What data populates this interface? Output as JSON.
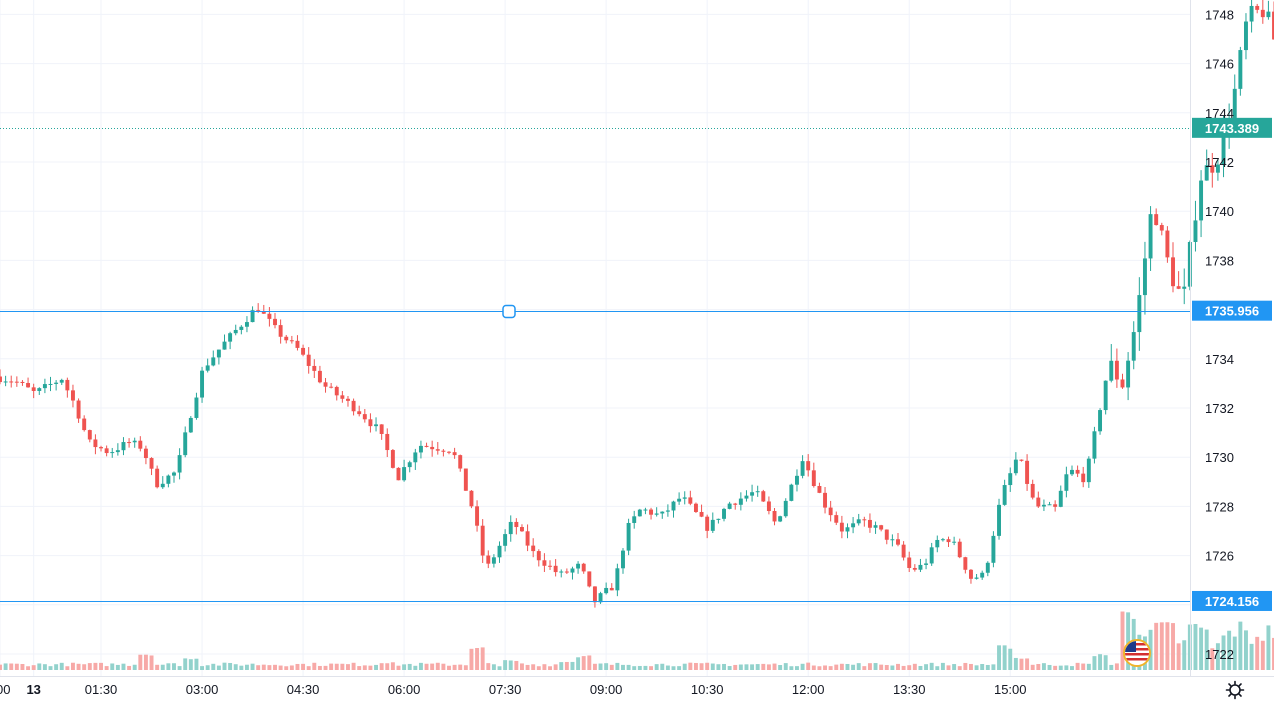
{
  "chart_data": {
    "type": "candlestick",
    "y_ticks": [
      "1722",
      "1724",
      "1726",
      "1728",
      "1730",
      "1732",
      "1734",
      "1736",
      "1738",
      "1740",
      "1742",
      "1744",
      "1746",
      "1748"
    ],
    "x_ticks": [
      "00",
      "13",
      "01:30",
      "03:00",
      "04:30",
      "06:00",
      "07:30",
      "09:00",
      "10:30",
      "12:00",
      "13:30",
      "15:00"
    ],
    "ylim": [
      1721.4,
      1748.4
    ],
    "x_tick_times_hours": [
      0,
      0.5,
      1.5,
      3.0,
      4.5,
      6.0,
      7.5,
      9.0,
      10.5,
      12.0,
      13.5,
      15.0
    ],
    "last_price": "1743.389",
    "last_price_value": 1743.389,
    "horizontal_lines": [
      {
        "label": "1735.956",
        "value": 1735.956
      },
      {
        "label": "1724.156",
        "value": 1724.156
      }
    ],
    "colors": {
      "up": "#26a69a",
      "down": "#ef5350",
      "up_volume": "#92d2cc",
      "down_volume": "#f7a9a7",
      "hline": "#2196f3",
      "last_price": "#26a69a",
      "grid": "#f0f3fa"
    },
    "waypoints": [
      [
        -0.2,
        1733.4
      ],
      [
        0.3,
        1733.1
      ],
      [
        0.6,
        1732.6
      ],
      [
        1.0,
        1733.2
      ],
      [
        1.2,
        1732.1
      ],
      [
        1.4,
        1730.6
      ],
      [
        1.7,
        1730.2
      ],
      [
        2.0,
        1730.6
      ],
      [
        2.2,
        1730.4
      ],
      [
        2.4,
        1728.9
      ],
      [
        2.7,
        1729.4
      ],
      [
        2.9,
        1731.6
      ],
      [
        3.1,
        1733.6
      ],
      [
        3.4,
        1734.6
      ],
      [
        3.7,
        1735.5
      ],
      [
        3.9,
        1736.1
      ],
      [
        4.2,
        1735.1
      ],
      [
        4.5,
        1734.4
      ],
      [
        4.9,
        1732.9
      ],
      [
        5.4,
        1731.9
      ],
      [
        5.7,
        1731.1
      ],
      [
        6.0,
        1729.2
      ],
      [
        6.3,
        1730.5
      ],
      [
        6.8,
        1730.3
      ],
      [
        7.1,
        1727.9
      ],
      [
        7.3,
        1725.4
      ],
      [
        7.7,
        1727.4
      ],
      [
        8.0,
        1726.1
      ],
      [
        8.4,
        1725.2
      ],
      [
        8.7,
        1725.6
      ],
      [
        8.9,
        1724.1
      ],
      [
        9.2,
        1724.8
      ],
      [
        9.4,
        1727.1
      ],
      [
        9.6,
        1727.9
      ],
      [
        9.9,
        1727.6
      ],
      [
        10.2,
        1728.4
      ],
      [
        10.6,
        1727.1
      ],
      [
        10.9,
        1728.1
      ],
      [
        11.3,
        1728.6
      ],
      [
        11.6,
        1727.3
      ],
      [
        11.8,
        1728.6
      ],
      [
        12.0,
        1730.0
      ],
      [
        12.3,
        1728.2
      ],
      [
        12.6,
        1727.0
      ],
      [
        12.9,
        1727.4
      ],
      [
        13.1,
        1727.1
      ],
      [
        13.4,
        1726.4
      ],
      [
        13.6,
        1725.4
      ],
      [
        13.8,
        1725.6
      ],
      [
        14.0,
        1726.6
      ],
      [
        14.2,
        1726.7
      ],
      [
        14.5,
        1725.1
      ],
      [
        14.7,
        1725.2
      ],
      [
        14.95,
        1728.4
      ],
      [
        15.2,
        1730.1
      ],
      [
        15.45,
        1728.0
      ],
      [
        15.75,
        1727.9
      ],
      [
        15.95,
        1729.5
      ],
      [
        16.2,
        1729.1
      ],
      [
        16.4,
        1731.8
      ],
      [
        16.55,
        1733.8
      ],
      [
        16.75,
        1733.0
      ],
      [
        16.95,
        1735.5
      ],
      [
        17.2,
        1740.4
      ],
      [
        17.45,
        1737.6
      ],
      [
        17.65,
        1736.3
      ],
      [
        17.9,
        1741.4
      ],
      [
        18.15,
        1742.1
      ],
      [
        18.4,
        1744.6
      ],
      [
        18.6,
        1747.8
      ],
      [
        18.85,
        1748.2
      ],
      [
        19.05,
        1746.6
      ],
      [
        19.3,
        1745.6
      ],
      [
        19.5,
        1742.6
      ],
      [
        19.75,
        1743.0
      ],
      [
        19.95,
        1742.1
      ],
      [
        20.15,
        1741.3
      ],
      [
        20.35,
        1743.6
      ],
      [
        20.55,
        1743.389
      ]
    ],
    "volume_peaks": [
      [
        2.2,
        0.55
      ],
      [
        2.8,
        0.4
      ],
      [
        5.75,
        0.25
      ],
      [
        7.1,
        0.75
      ],
      [
        7.6,
        0.32
      ],
      [
        8.4,
        0.28
      ],
      [
        8.7,
        0.48
      ],
      [
        14.9,
        0.8
      ],
      [
        15.15,
        0.42
      ],
      [
        16.3,
        0.52
      ],
      [
        16.75,
        1.9
      ],
      [
        16.9,
        1.2
      ],
      [
        17.3,
        1.6
      ],
      [
        17.7,
        1.0
      ],
      [
        18.2,
        0.58
      ],
      [
        18.6,
        0.65
      ],
      [
        19.1,
        0.42
      ],
      [
        19.6,
        0.4
      ]
    ]
  }
}
